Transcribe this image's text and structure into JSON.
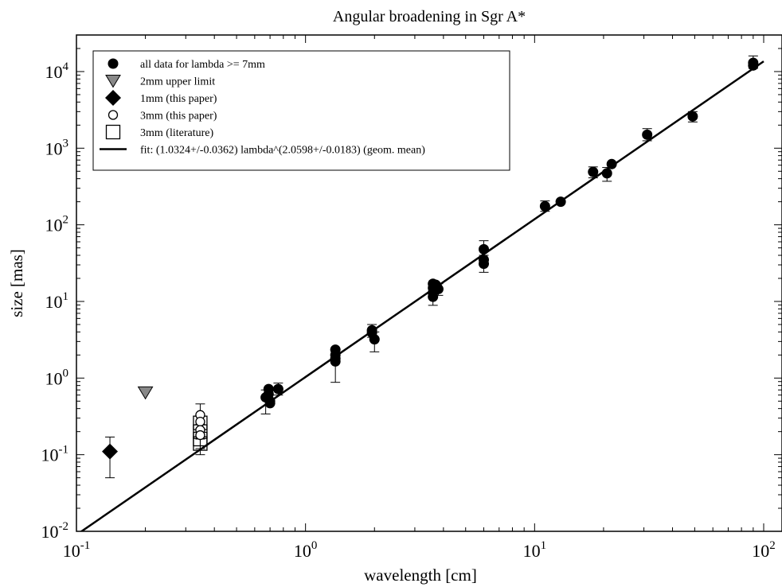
{
  "chart_data": {
    "type": "scatter",
    "title": "Angular broadening in Sgr A*",
    "xlabel": "wavelength [cm]",
    "ylabel": "size [mas]",
    "x_scale": "log",
    "y_scale": "log",
    "xlim": [
      0.1,
      100
    ],
    "ylim": [
      0.01,
      30000
    ],
    "x_ticks": [
      {
        "value": 0.1,
        "base": "10",
        "exp": "-1"
      },
      {
        "value": 1,
        "base": "10",
        "exp": "0"
      },
      {
        "value": 10,
        "base": "10",
        "exp": "1"
      },
      {
        "value": 100,
        "base": "10",
        "exp": "2"
      }
    ],
    "y_ticks": [
      {
        "value": 0.01,
        "base": "10",
        "exp": "-2"
      },
      {
        "value": 0.1,
        "base": "10",
        "exp": "-1"
      },
      {
        "value": 1,
        "base": "10",
        "exp": "0"
      },
      {
        "value": 10,
        "base": "10",
        "exp": "1"
      },
      {
        "value": 100,
        "base": "10",
        "exp": "2"
      },
      {
        "value": 1000,
        "base": "10",
        "exp": "3"
      },
      {
        "value": 10000,
        "base": "10",
        "exp": "4"
      }
    ],
    "grid": false,
    "legend_position": "top-left",
    "series": [
      {
        "name": "all data for lambda >= 7mm",
        "marker": "filled-circle",
        "points": [
          {
            "x": 0.67,
            "y": 0.56,
            "err": [
              0.34,
              0.7
            ]
          },
          {
            "x": 0.69,
            "y": 0.72
          },
          {
            "x": 0.69,
            "y": 0.62
          },
          {
            "x": 0.7,
            "y": 0.5
          },
          {
            "x": 0.7,
            "y": 0.47
          },
          {
            "x": 0.76,
            "y": 0.72,
            "err": [
              0.6,
              0.86
            ]
          },
          {
            "x": 1.35,
            "y": 2.35
          },
          {
            "x": 1.35,
            "y": 2.0,
            "err": [
              0.88,
              2.4
            ]
          },
          {
            "x": 1.35,
            "y": 1.8
          },
          {
            "x": 1.35,
            "y": 1.65
          },
          {
            "x": 1.95,
            "y": 4.2,
            "err": [
              3.4,
              5.0
            ]
          },
          {
            "x": 1.95,
            "y": 3.9
          },
          {
            "x": 2.0,
            "y": 3.2,
            "err": [
              2.2,
              4.0
            ]
          },
          {
            "x": 3.6,
            "y": 17.0
          },
          {
            "x": 3.6,
            "y": 15.0
          },
          {
            "x": 3.6,
            "y": 13.0
          },
          {
            "x": 3.6,
            "y": 11.5,
            "err": [
              8.9,
              15.0
            ]
          },
          {
            "x": 3.7,
            "y": 16.5
          },
          {
            "x": 3.75,
            "y": 15.5
          },
          {
            "x": 3.8,
            "y": 14.5,
            "err": [
              12.0,
              17.0
            ]
          },
          {
            "x": 6.0,
            "y": 48.0,
            "err": [
              36.0,
              62.0
            ]
          },
          {
            "x": 6.0,
            "y": 35.0
          },
          {
            "x": 6.0,
            "y": 31.0,
            "err": [
              24.0,
              40.0
            ]
          },
          {
            "x": 11.1,
            "y": 175.0,
            "err": [
              150.0,
              205.0
            ]
          },
          {
            "x": 13.0,
            "y": 200.0
          },
          {
            "x": 18.0,
            "y": 490.0,
            "err": [
              410.0,
              570.0
            ]
          },
          {
            "x": 20.7,
            "y": 470.0,
            "err": [
              370.0,
              560.0
            ]
          },
          {
            "x": 21.7,
            "y": 620.0
          },
          {
            "x": 31.0,
            "y": 1500.0,
            "err": [
              1250.0,
              1800.0
            ]
          },
          {
            "x": 49.0,
            "y": 2600.0,
            "err": [
              2200.0,
              3000.0
            ]
          },
          {
            "x": 90.0,
            "y": 13000.0,
            "err": [
              11000.0,
              16000.0
            ]
          },
          {
            "x": 90.0,
            "y": 12000.0
          }
        ]
      },
      {
        "name": "2mm upper limit",
        "marker": "down-triangle",
        "points": [
          {
            "x": 0.2,
            "y": 0.65
          }
        ]
      },
      {
        "name": "1mm (this paper)",
        "marker": "filled-diamond",
        "points": [
          {
            "x": 0.14,
            "y": 0.11,
            "err": [
              0.05,
              0.17
            ]
          }
        ]
      },
      {
        "name": "3mm (this paper)",
        "marker": "open-circle",
        "points": [
          {
            "x": 0.347,
            "y": 0.33,
            "err": [
              0.22,
              0.46
            ]
          },
          {
            "x": 0.347,
            "y": 0.27
          },
          {
            "x": 0.347,
            "y": 0.21
          },
          {
            "x": 0.347,
            "y": 0.18,
            "err": [
              0.1,
              0.25
            ]
          }
        ]
      },
      {
        "name": "3mm (literature)",
        "marker": "open-square",
        "points": [
          {
            "x": 0.347,
            "y": 0.26
          },
          {
            "x": 0.347,
            "y": 0.2
          },
          {
            "x": 0.347,
            "y": 0.16
          },
          {
            "x": 0.347,
            "y": 0.14,
            "err": [
              0.12,
              0.16
            ]
          }
        ]
      },
      {
        "name": "fit: (1.0324+/-0.0362) lambda^(2.0598+/-0.0183) (geom. mean)",
        "marker": "line",
        "fit": {
          "coefficient": 1.0324,
          "exponent": 2.0598
        },
        "line_x": [
          0.1,
          100
        ]
      }
    ]
  }
}
